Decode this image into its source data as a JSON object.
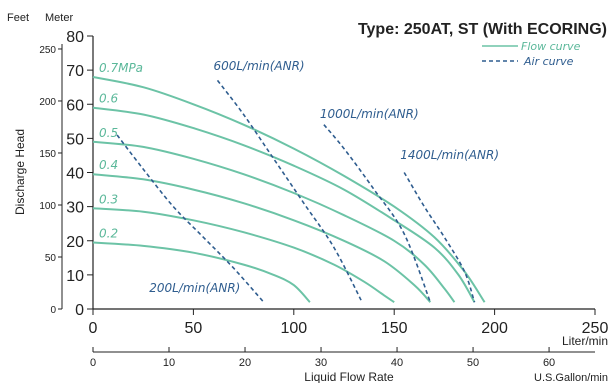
{
  "chart_data": {
    "type": "line",
    "title": "Type: 250AT, ST (With ECORING)",
    "xlabel": "Liquid Flow Rate",
    "ylabel": "Discharge Head",
    "x_unit": "Liter/min",
    "x2_unit": "U.S.Gallon/min",
    "y2_unit": "Feet",
    "y_unit": "Meter",
    "xlim": [
      0,
      250
    ],
    "ylim": [
      0,
      80
    ],
    "x_ticks": [
      0,
      50,
      100,
      150,
      200,
      250
    ],
    "y_ticks": [
      0,
      10,
      20,
      30,
      40,
      50,
      60,
      70,
      80
    ],
    "x2_ticks": [
      0,
      10,
      20,
      30,
      40,
      50,
      60
    ],
    "y2_ticks": [
      0,
      50,
      100,
      150,
      200,
      250
    ],
    "grid": false,
    "legend": {
      "position": "top-right",
      "entries": [
        {
          "label": "Flow curve",
          "style": "solid",
          "color": "#6cc3a6"
        },
        {
          "label": "Air curve",
          "style": "dashed",
          "color": "#2f5d8f"
        }
      ]
    },
    "flow_curves": [
      {
        "name": "0.7MPa",
        "color": "#6cc3a6",
        "points": [
          [
            0,
            68
          ],
          [
            25,
            65
          ],
          [
            50,
            60
          ],
          [
            75,
            54
          ],
          [
            100,
            47
          ],
          [
            125,
            39
          ],
          [
            150,
            30
          ],
          [
            170,
            21
          ],
          [
            185,
            11
          ],
          [
            195,
            2
          ]
        ]
      },
      {
        "name": "0.6",
        "color": "#6cc3a6",
        "points": [
          [
            0,
            59
          ],
          [
            25,
            57
          ],
          [
            50,
            53
          ],
          [
            75,
            48
          ],
          [
            100,
            42
          ],
          [
            125,
            35
          ],
          [
            150,
            26
          ],
          [
            170,
            18
          ],
          [
            182,
            10
          ],
          [
            190,
            2
          ]
        ]
      },
      {
        "name": "0.5",
        "color": "#6cc3a6",
        "points": [
          [
            0,
            49
          ],
          [
            25,
            47.5
          ],
          [
            50,
            44
          ],
          [
            75,
            39.5
          ],
          [
            100,
            34
          ],
          [
            125,
            27.5
          ],
          [
            150,
            20
          ],
          [
            165,
            13
          ],
          [
            175,
            6
          ],
          [
            180,
            2
          ]
        ]
      },
      {
        "name": "0.4",
        "color": "#6cc3a6",
        "points": [
          [
            0,
            39.5
          ],
          [
            25,
            38
          ],
          [
            50,
            35
          ],
          [
            75,
            31
          ],
          [
            100,
            26
          ],
          [
            125,
            20
          ],
          [
            145,
            14
          ],
          [
            160,
            7
          ],
          [
            168,
            2
          ]
        ]
      },
      {
        "name": "0.3",
        "color": "#6cc3a6",
        "points": [
          [
            0,
            29.5
          ],
          [
            25,
            28.5
          ],
          [
            50,
            26
          ],
          [
            75,
            22.5
          ],
          [
            100,
            18
          ],
          [
            120,
            13
          ],
          [
            135,
            8
          ],
          [
            145,
            4
          ],
          [
            150,
            2
          ]
        ]
      },
      {
        "name": "0.2",
        "color": "#6cc3a6",
        "points": [
          [
            0,
            19.5
          ],
          [
            25,
            18.5
          ],
          [
            50,
            16.5
          ],
          [
            75,
            13
          ],
          [
            90,
            10
          ],
          [
            100,
            7
          ],
          [
            108,
            2
          ]
        ]
      }
    ],
    "air_curves": [
      {
        "name": "200L/min(ANR)",
        "color": "#2f5d8f",
        "points": [
          [
            12,
            51
          ],
          [
            25,
            41
          ],
          [
            40,
            30
          ],
          [
            55,
            21
          ],
          [
            70,
            12
          ],
          [
            85,
            2
          ]
        ]
      },
      {
        "name": "600L/min(ANR)",
        "color": "#2f5d8f",
        "points": [
          [
            62,
            67
          ],
          [
            75,
            57
          ],
          [
            90,
            44
          ],
          [
            105,
            31
          ],
          [
            120,
            18
          ],
          [
            134,
            2
          ]
        ]
      },
      {
        "name": "1000L/min(ANR)",
        "color": "#2f5d8f",
        "points": [
          [
            115,
            54
          ],
          [
            125,
            47
          ],
          [
            140,
            35
          ],
          [
            155,
            22
          ],
          [
            168,
            2
          ]
        ]
      },
      {
        "name": "1400L/min(ANR)",
        "color": "#2f5d8f",
        "points": [
          [
            155,
            40
          ],
          [
            165,
            30
          ],
          [
            175,
            21
          ],
          [
            185,
            11
          ],
          [
            190,
            2
          ]
        ]
      }
    ],
    "labels": {
      "flow_pressure": [
        {
          "text": "0.7MPa",
          "curve": "0.7MPa"
        },
        {
          "text": "0.6",
          "curve": "0.6"
        },
        {
          "text": "0.5",
          "curve": "0.5"
        },
        {
          "text": "0.4",
          "curve": "0.4"
        },
        {
          "text": "0.3",
          "curve": "0.3"
        },
        {
          "text": "0.2",
          "curve": "0.2"
        }
      ],
      "air": [
        {
          "text": "200L/min(ANR)",
          "x": 28,
          "y": 5
        },
        {
          "text": "600L/min(ANR)",
          "x": 60,
          "y": 70
        },
        {
          "text": "1000L/min(ANR)",
          "x": 113,
          "y": 56
        },
        {
          "text": "1400L/min(ANR)",
          "x": 153,
          "y": 44
        }
      ]
    }
  }
}
